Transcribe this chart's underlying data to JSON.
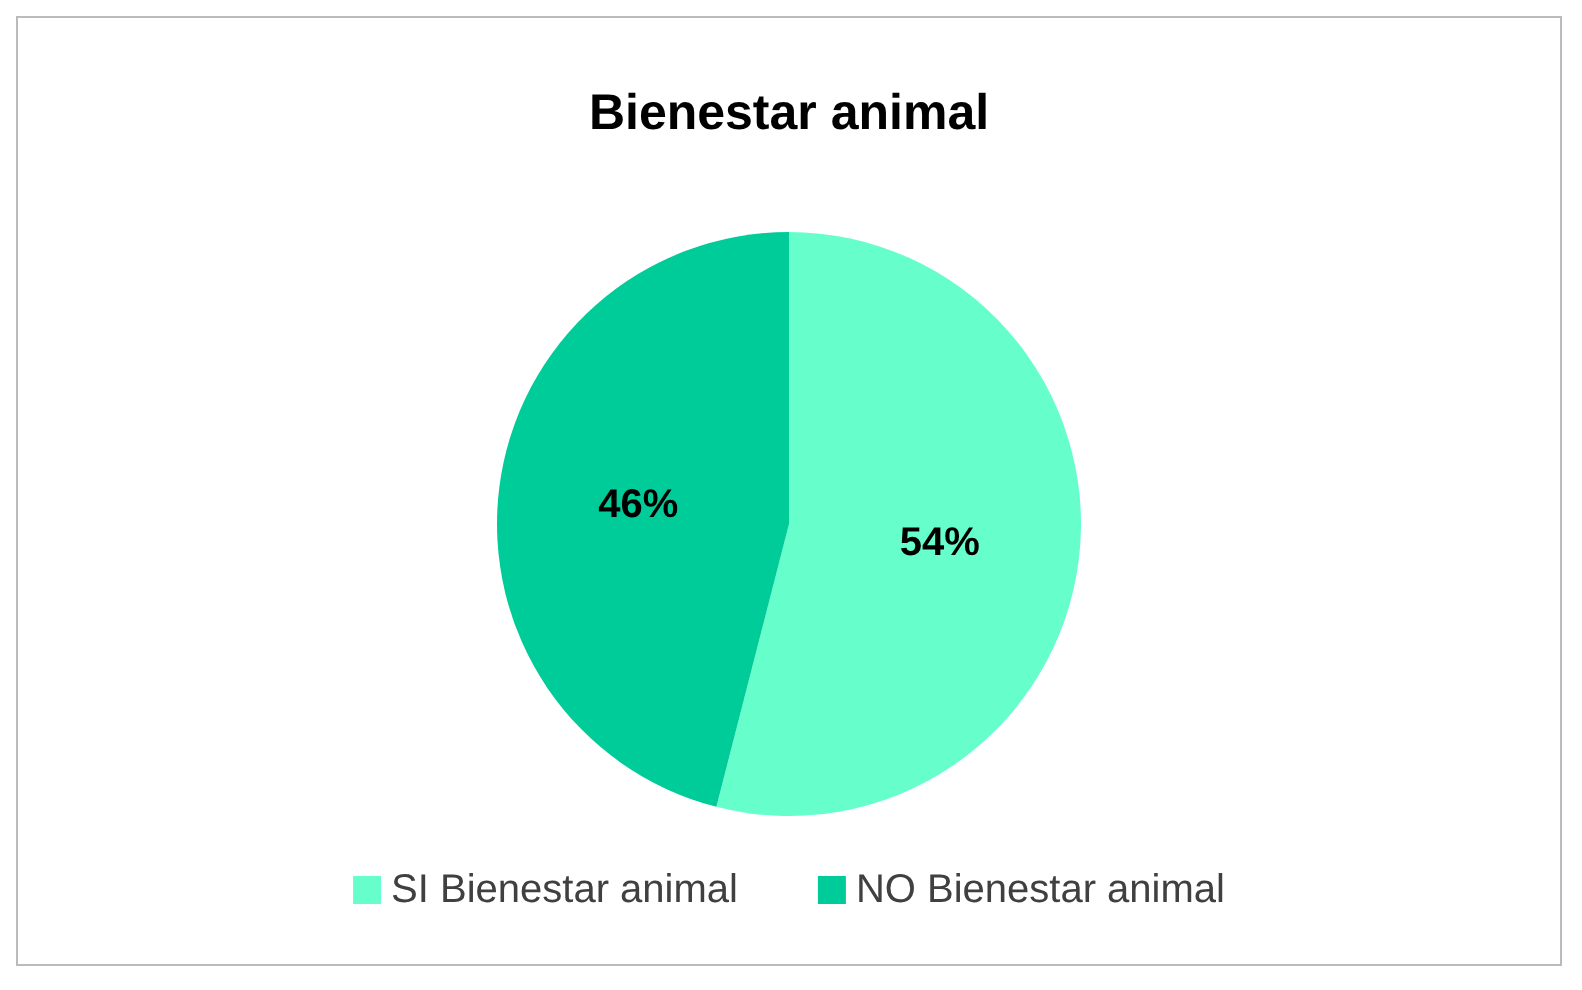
{
  "chart_data": {
    "type": "pie",
    "title": "Bienestar animal",
    "categories": [
      "SI Bienestar animal",
      "NO Bienestar animal"
    ],
    "values": [
      54,
      46
    ],
    "value_labels": [
      "54%",
      "46%"
    ],
    "colors": [
      "#66ffcc",
      "#00cc99"
    ],
    "legend": "bottom"
  }
}
